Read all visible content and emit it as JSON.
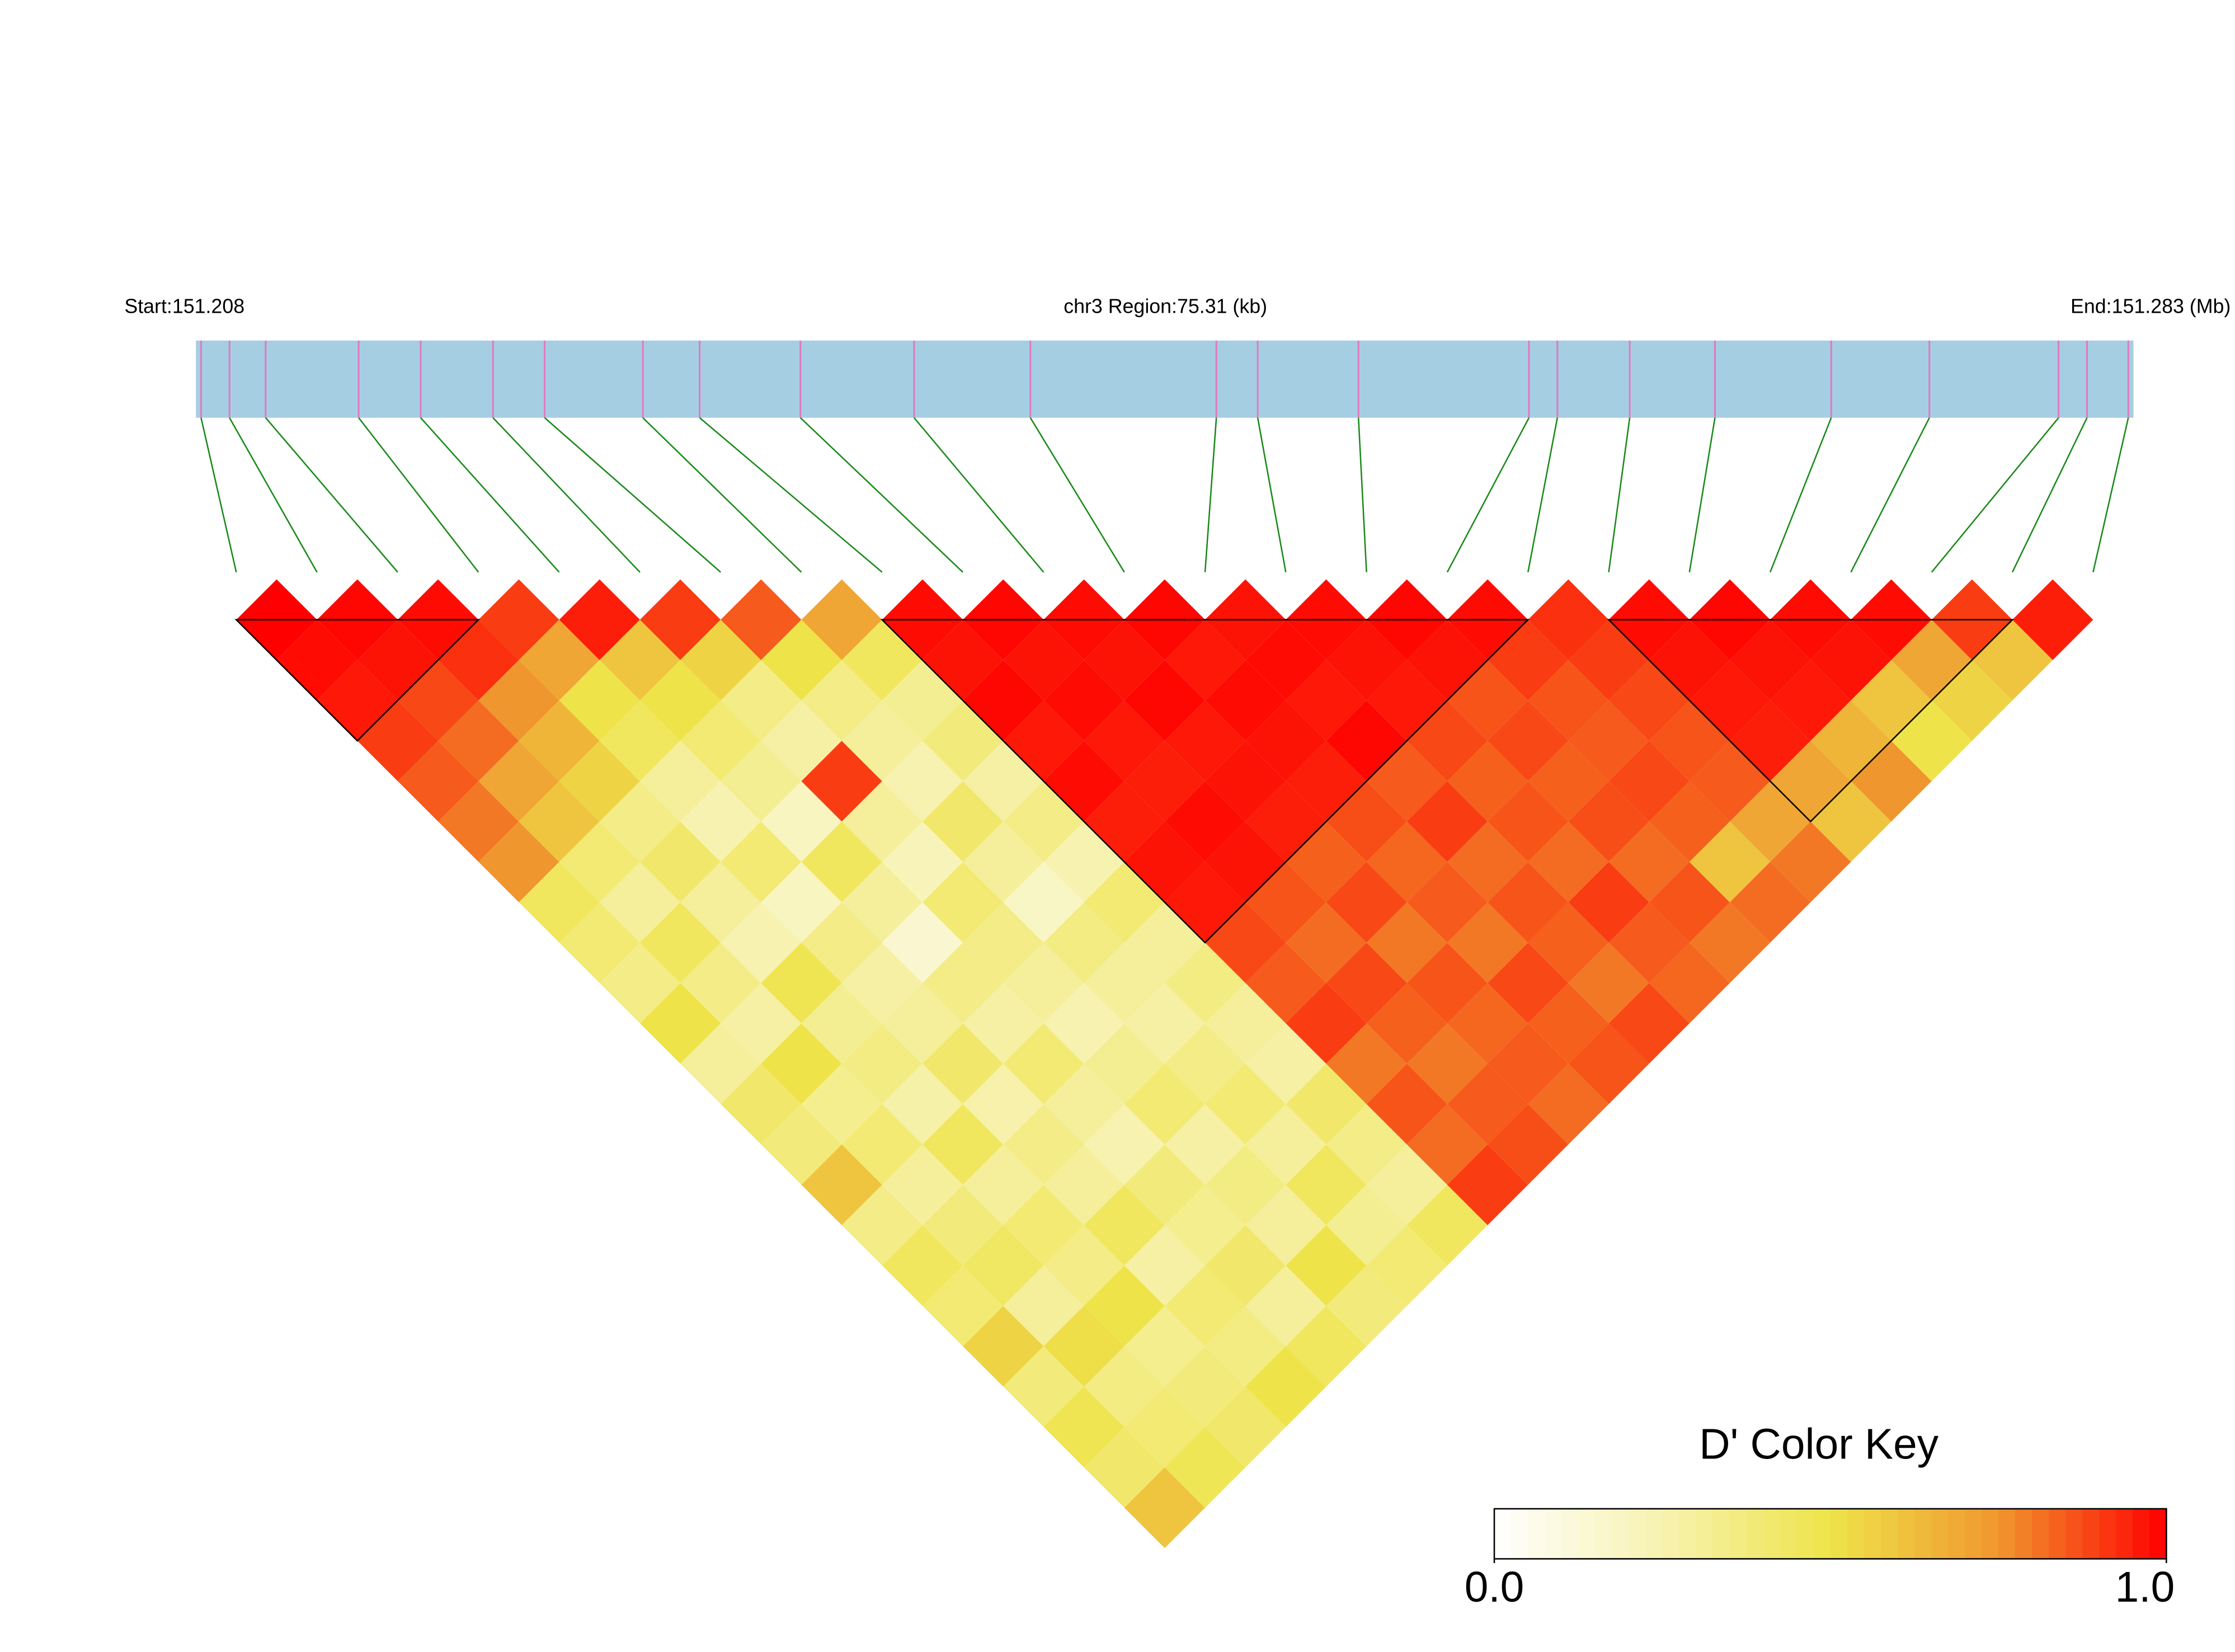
{
  "chart_data": {
    "type": "ld_heatmap",
    "start_label": "Start:151.208",
    "region_label": "chr3 Region:75.31 (kb)",
    "end_label": "End:151.283 (Mb)",
    "xlim": [
      151.208,
      151.283
    ],
    "positions": [
      151.2082,
      151.2093,
      151.2107,
      151.2143,
      151.2167,
      151.2195,
      151.2215,
      151.2253,
      151.2275,
      151.2314,
      151.2358,
      151.2403,
      151.2475,
      151.2491,
      151.253,
      151.2596,
      151.2607,
      151.2635,
      151.2668,
      151.2713,
      151.2751,
      151.2801,
      151.2812,
      151.2828
    ],
    "dprime": [
      [
        1,
        0.98,
        0.96,
        0.9,
        0.85,
        0.8,
        0.75,
        0.45,
        0.4,
        0.35,
        0.5,
        0.3,
        0.42,
        0.38,
        0.6,
        0.35,
        0.45,
        0.4,
        0.55,
        0.38,
        0.48,
        0.42,
        0.6
      ],
      [
        0.99,
        0.97,
        0.88,
        0.82,
        0.7,
        0.6,
        0.4,
        0.3,
        0.45,
        0.35,
        0.28,
        0.5,
        0.33,
        0.4,
        0.3,
        0.38,
        0.44,
        0.3,
        0.52,
        0.36,
        0.4,
        0.47
      ],
      [
        0.98,
        0.92,
        0.75,
        0.65,
        0.55,
        0.35,
        0.42,
        0.3,
        0.25,
        0.48,
        0.32,
        0.36,
        0.27,
        0.45,
        0.3,
        0.4,
        0.35,
        0.5,
        0.33,
        0.38,
        0.42
      ],
      [
        0.9,
        0.7,
        0.5,
        0.45,
        0.3,
        0.25,
        0.4,
        0.2,
        0.35,
        0.28,
        0.3,
        0.42,
        0.26,
        0.35,
        0.3,
        0.45,
        0.28,
        0.4,
        0.36,
        0.5
      ],
      [
        0.95,
        0.6,
        0.5,
        0.4,
        0.32,
        0.2,
        0.45,
        0.3,
        0.15,
        0.35,
        0.28,
        0.4,
        0.3,
        0.25,
        0.38,
        0.33,
        0.42,
        0.3,
        0.45
      ],
      [
        0.9,
        0.55,
        0.35,
        0.28,
        0.9,
        0.3,
        0.22,
        0.4,
        0.35,
        0.3,
        0.25,
        0.32,
        0.4,
        0.28,
        0.36,
        0.3,
        0.5,
        0.38
      ],
      [
        0.85,
        0.5,
        0.35,
        0.3,
        0.25,
        0.42,
        0.3,
        0.18,
        0.36,
        0.3,
        0.28,
        0.35,
        0.4,
        0.3,
        0.45,
        0.32,
        0.4
      ],
      [
        0.7,
        0.45,
        0.32,
        0.38,
        0.28,
        0.35,
        0.25,
        0.4,
        0.3,
        0.36,
        0.3,
        0.28,
        0.42,
        0.35,
        0.3,
        0.45
      ],
      [
        0.98,
        0.97,
        0.99,
        0.96,
        0.98,
        0.95,
        0.97,
        0.96,
        0.88,
        0.85,
        0.9,
        0.8,
        0.86,
        0.82,
        0.9
      ],
      [
        0.99,
        0.97,
        0.98,
        0.96,
        0.95,
        0.98,
        0.97,
        0.86,
        0.82,
        0.88,
        0.84,
        0.8,
        0.85,
        0.87
      ],
      [
        0.98,
        0.97,
        0.99,
        0.96,
        0.97,
        0.95,
        0.84,
        0.88,
        0.8,
        0.86,
        0.83,
        0.85,
        0.82
      ],
      [
        0.99,
        0.96,
        0.98,
        0.97,
        0.95,
        0.87,
        0.83,
        0.85,
        0.8,
        0.88,
        0.84,
        0.86
      ],
      [
        0.97,
        0.98,
        0.96,
        0.99,
        0.85,
        0.9,
        0.82,
        0.86,
        0.84,
        0.8,
        0.88
      ],
      [
        0.98,
        0.97,
        0.96,
        0.88,
        0.84,
        0.86,
        0.82,
        0.9,
        0.85,
        0.83
      ],
      [
        0.99,
        0.97,
        0.86,
        0.88,
        0.84,
        0.87,
        0.82,
        0.86,
        0.8
      ],
      [
        0.98,
        0.9,
        0.86,
        0.85,
        0.88,
        0.84,
        0.6,
        0.82
      ],
      [
        0.92,
        0.9,
        0.88,
        0.86,
        0.85,
        0.7,
        0.8
      ],
      [
        0.98,
        0.97,
        0.96,
        0.95,
        0.7,
        0.6
      ],
      [
        0.99,
        0.97,
        0.96,
        0.65,
        0.75
      ],
      [
        0.98,
        0.97,
        0.6,
        0.5
      ],
      [
        0.98,
        0.7,
        0.55
      ],
      [
        0.9,
        0.6
      ],
      [
        0.95
      ]
    ],
    "blocks": [
      [
        0,
        3
      ],
      [
        8,
        16
      ],
      [
        17,
        22
      ]
    ],
    "bar_color": "#a6cee3",
    "snp_color": "#e07ac0",
    "link_color": "#1a8a1a",
    "colors": [
      "#ffffff",
      "#f7f2b0",
      "#eee44a",
      "#f0962e",
      "#ff0000"
    ],
    "key_title": "D' Color Key",
    "colorlim": [
      0,
      1
    ],
    "key_ticks": [
      {
        "value": 0,
        "label": "0.0"
      },
      {
        "value": 1,
        "label": "1.0"
      }
    ]
  }
}
